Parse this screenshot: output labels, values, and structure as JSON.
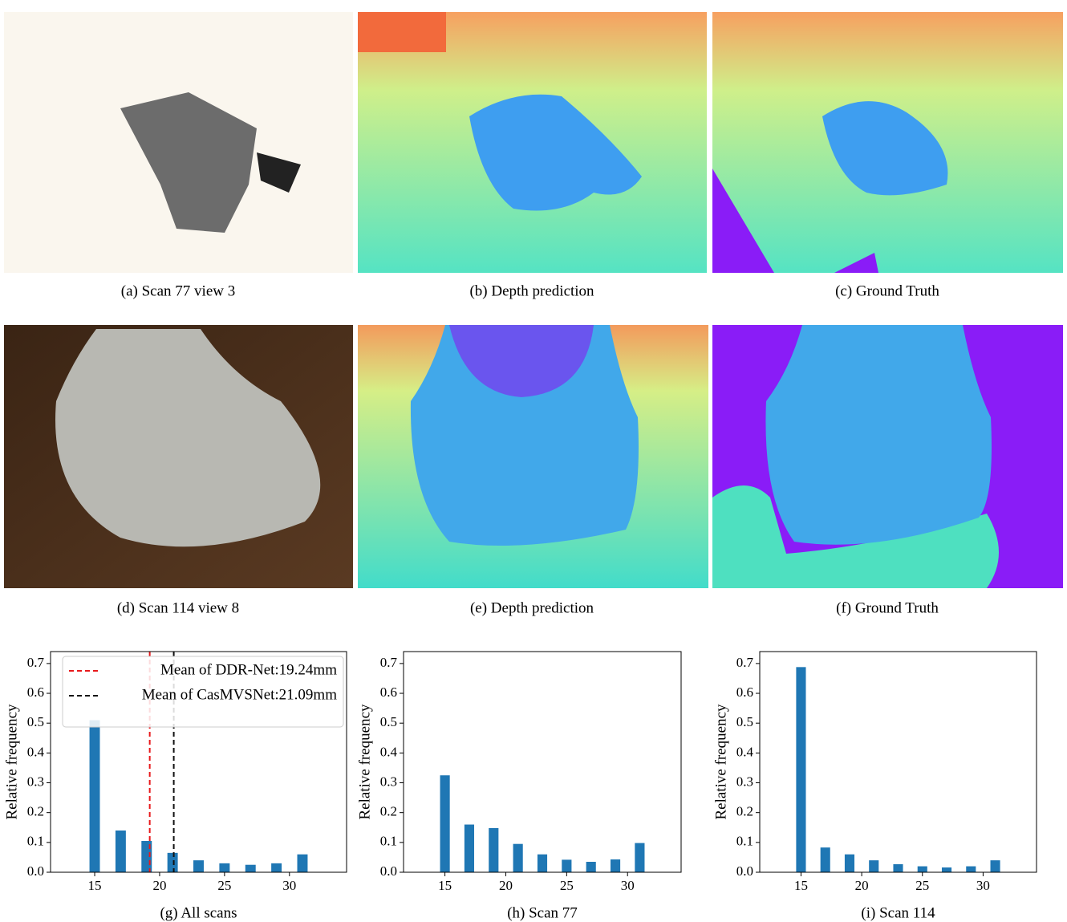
{
  "panels": [
    {
      "caption": "(a)  Scan 77 view 3"
    },
    {
      "caption": "(b)  Depth prediction"
    },
    {
      "caption": "(c)  Ground Truth"
    },
    {
      "caption": "(d)  Scan 114 view 8"
    },
    {
      "caption": "(e)  Depth prediction"
    },
    {
      "caption": "(f)  Ground Truth"
    }
  ],
  "chart_data": [
    {
      "type": "bar",
      "caption": "(g)  All scans",
      "ylabel": "Relative frequency",
      "color": "#1f77b4",
      "x": [
        15,
        17,
        19,
        21,
        23,
        25,
        27,
        29,
        31
      ],
      "values": [
        0.51,
        0.14,
        0.105,
        0.065,
        0.04,
        0.03,
        0.025,
        0.03,
        0.06
      ],
      "xlim": [
        11.6,
        34.4
      ],
      "xticks": [
        15,
        20,
        25,
        30
      ],
      "ylim": [
        0,
        0.74
      ],
      "yticks": [
        {
          "value": 0,
          "label": "0.0"
        },
        0.1,
        0.2,
        0.3,
        0.4,
        0.5,
        0.6,
        0.7
      ],
      "lines": [
        {
          "name": "Mean of DDR-Net:19.24mm",
          "color": "#e8191b",
          "x": 19.24
        },
        {
          "name": "Mean of CasMVSNet:21.09mm",
          "color": "#111111",
          "x": 21.09
        }
      ],
      "legend": "upper right"
    },
    {
      "type": "bar",
      "caption": "(h)  Scan 77",
      "ylabel": "Relative frequency",
      "color": "#1f77b4",
      "x": [
        15,
        17,
        19,
        21,
        23,
        25,
        27,
        29,
        31
      ],
      "values": [
        0.325,
        0.16,
        0.148,
        0.095,
        0.06,
        0.042,
        0.035,
        0.043,
        0.098
      ],
      "xlim": [
        11.6,
        34.4
      ],
      "xticks": [
        15,
        20,
        25,
        30
      ],
      "ylim": [
        0,
        0.74
      ],
      "yticks": [
        {
          "value": 0,
          "label": "0.0"
        },
        0.1,
        0.2,
        0.3,
        0.4,
        0.5,
        0.6,
        0.7
      ]
    },
    {
      "type": "bar",
      "caption": "(i)  Scan 114",
      "ylabel": "Relative frequency",
      "color": "#1f77b4",
      "x": [
        15,
        17,
        19,
        21,
        23,
        25,
        27,
        29,
        31
      ],
      "values": [
        0.688,
        0.083,
        0.06,
        0.04,
        0.027,
        0.02,
        0.016,
        0.02,
        0.04
      ],
      "xlim": [
        11.6,
        34.4
      ],
      "xticks": [
        15,
        20,
        25,
        30
      ],
      "ylim": [
        0,
        0.74
      ],
      "yticks": [
        {
          "value": 0,
          "label": "0.0"
        },
        0.1,
        0.2,
        0.3,
        0.4,
        0.5,
        0.6,
        0.7
      ]
    }
  ]
}
